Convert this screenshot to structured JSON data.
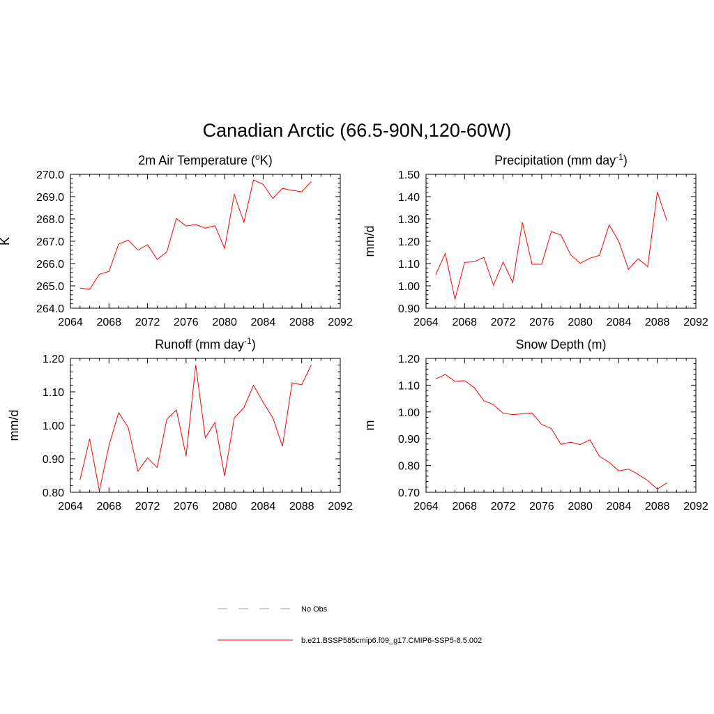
{
  "title": "Canadian Arctic (66.5-90N,120-60W)",
  "colors": {
    "model": "#ff0000",
    "obs": "#9999ff",
    "axis": "#000000"
  },
  "legend": [
    {
      "label": "No Obs",
      "style": "dashed",
      "color": "#9999ff"
    },
    {
      "label": "b.e21.BSSP585cmip6.f09_g17.CMIP6-SSP5-8.5.002",
      "style": "solid",
      "color": "#ff0000"
    }
  ],
  "chart_data": [
    {
      "type": "line",
      "title": "2m Air Temperature (",
      "title_sup": "o",
      "title_after": "K)",
      "title_sup_after": "",
      "title_end": "",
      "ylabel": "K",
      "xlim": [
        2064,
        2092
      ],
      "ylim": [
        264.0,
        270.0
      ],
      "xticks": [
        2064,
        2068,
        2072,
        2076,
        2080,
        2084,
        2088,
        2092
      ],
      "yticks": [
        "264.0",
        "265.0",
        "266.0",
        "267.0",
        "268.0",
        "269.0",
        "270.0"
      ],
      "ytick_values": [
        264,
        265,
        266,
        267,
        268,
        269,
        270
      ],
      "x": [
        2065,
        2066,
        2067,
        2068,
        2069,
        2070,
        2071,
        2072,
        2073,
        2074,
        2075,
        2076,
        2077,
        2078,
        2079,
        2080,
        2081,
        2082,
        2083,
        2084,
        2085,
        2086,
        2087,
        2088,
        2089
      ],
      "series": [
        {
          "name": "b.e21.BSSP585cmip6.f09_g17.CMIP6-SSP5-8.5.002",
          "values": [
            264.9,
            264.85,
            265.52,
            265.65,
            266.87,
            267.05,
            266.6,
            266.85,
            266.18,
            266.52,
            268.02,
            267.68,
            267.75,
            267.58,
            267.7,
            266.68,
            269.1,
            267.85,
            269.75,
            269.55,
            268.92,
            269.37,
            269.28,
            269.22,
            269.68
          ]
        }
      ]
    },
    {
      "type": "line",
      "title": "Precipitation (mm day",
      "title_sup": "-1",
      "title_after": ")",
      "ylabel": "mm/d",
      "xlim": [
        2064,
        2092
      ],
      "ylim": [
        0.9,
        1.5
      ],
      "xticks": [
        2064,
        2068,
        2072,
        2076,
        2080,
        2084,
        2088,
        2092
      ],
      "yticks": [
        "0.90",
        "1.00",
        "1.10",
        "1.20",
        "1.30",
        "1.40",
        "1.50"
      ],
      "ytick_values": [
        0.9,
        1.0,
        1.1,
        1.2,
        1.3,
        1.4,
        1.5
      ],
      "x": [
        2065,
        2066,
        2067,
        2068,
        2069,
        2070,
        2071,
        2072,
        2073,
        2074,
        2075,
        2076,
        2077,
        2078,
        2079,
        2080,
        2081,
        2082,
        2083,
        2084,
        2085,
        2086,
        2087,
        2088,
        2089
      ],
      "series": [
        {
          "name": "b.e21.BSSP585cmip6.f09_g17.CMIP6-SSP5-8.5.002",
          "values": [
            1.05,
            1.145,
            0.94,
            1.105,
            1.108,
            1.128,
            1.003,
            1.107,
            1.015,
            1.285,
            1.097,
            1.097,
            1.243,
            1.228,
            1.14,
            1.101,
            1.124,
            1.137,
            1.273,
            1.2,
            1.074,
            1.122,
            1.086,
            1.421,
            1.292
          ]
        }
      ]
    },
    {
      "type": "line",
      "title": "Runoff (mm day",
      "title_sup": "-1",
      "title_after": ")",
      "ylabel": "mm/d",
      "xlim": [
        2064,
        2092
      ],
      "ylim": [
        0.8,
        1.2
      ],
      "xticks": [
        2064,
        2068,
        2072,
        2076,
        2080,
        2084,
        2088,
        2092
      ],
      "yticks": [
        "0.80",
        "0.90",
        "1.00",
        "1.10",
        "1.20"
      ],
      "ytick_values": [
        0.8,
        0.9,
        1.0,
        1.1,
        1.2
      ],
      "x": [
        2065,
        2066,
        2067,
        2068,
        2069,
        2070,
        2071,
        2072,
        2073,
        2074,
        2075,
        2076,
        2077,
        2078,
        2079,
        2080,
        2081,
        2082,
        2083,
        2084,
        2085,
        2086,
        2087,
        2088,
        2089
      ],
      "series": [
        {
          "name": "b.e21.BSSP585cmip6.f09_g17.CMIP6-SSP5-8.5.002",
          "values": [
            0.837,
            0.96,
            0.804,
            0.94,
            1.038,
            0.994,
            0.863,
            0.903,
            0.874,
            1.018,
            1.046,
            0.908,
            1.18,
            0.963,
            1.009,
            0.849,
            1.022,
            1.053,
            1.12,
            1.069,
            1.022,
            0.937,
            1.127,
            1.121,
            1.181
          ]
        }
      ]
    },
    {
      "type": "line",
      "title": "Snow Depth (m)",
      "title_sup": "",
      "title_after": "",
      "ylabel": "m",
      "xlim": [
        2064,
        2092
      ],
      "ylim": [
        0.7,
        1.2
      ],
      "xticks": [
        2064,
        2068,
        2072,
        2076,
        2080,
        2084,
        2088,
        2092
      ],
      "yticks": [
        "0.70",
        "0.80",
        "0.90",
        "1.00",
        "1.10",
        "1.20"
      ],
      "ytick_values": [
        0.7,
        0.8,
        0.9,
        1.0,
        1.1,
        1.2
      ],
      "x": [
        2065,
        2066,
        2067,
        2068,
        2069,
        2070,
        2071,
        2072,
        2073,
        2074,
        2075,
        2076,
        2077,
        2078,
        2079,
        2080,
        2081,
        2082,
        2083,
        2084,
        2085,
        2086,
        2087,
        2088,
        2089
      ],
      "series": [
        {
          "name": "b.e21.BSSP585cmip6.f09_g17.CMIP6-SSP5-8.5.002",
          "values": [
            1.123,
            1.14,
            1.114,
            1.117,
            1.091,
            1.042,
            1.027,
            0.995,
            0.99,
            0.993,
            0.996,
            0.953,
            0.938,
            0.879,
            0.887,
            0.878,
            0.896,
            0.834,
            0.812,
            0.78,
            0.787,
            0.767,
            0.744,
            0.712,
            0.735
          ]
        }
      ]
    }
  ]
}
